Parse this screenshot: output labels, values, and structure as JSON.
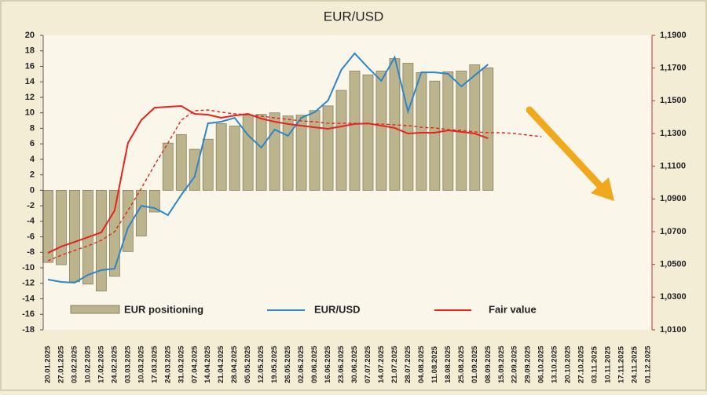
{
  "chart_data": {
    "type": "bar",
    "title": "EUR/USD",
    "categories": [
      "20.01.2025",
      "27.01.2025",
      "03.02.2025",
      "10.02.2025",
      "17.02.2025",
      "24.02.2025",
      "03.03.2025",
      "10.03.2025",
      "17.03.2025",
      "24.03.2025",
      "31.03.2025",
      "07.04.2025",
      "14.04.2025",
      "21.04.2025",
      "28.04.2025",
      "05.05.2025",
      "12.05.2025",
      "19.05.2025",
      "26.05.2025",
      "02.06.2025",
      "09.06.2025",
      "16.06.2025",
      "23.06.2025",
      "30.06.2025",
      "07.07.2025",
      "14.07.2025",
      "21.07.2025",
      "28.07.2025",
      "04.08.2025",
      "11.08.2025",
      "18.08.2025",
      "25.08.2025",
      "01.09.2025",
      "08.09.2025",
      "15.09.2025",
      "22.09.2025",
      "29.09.2025",
      "06.10.2025",
      "13.10.2025",
      "20.10.2025",
      "27.10.2025",
      "03.11.2025",
      "10.11.2025",
      "17.11.2025",
      "24.11.2025",
      "01.12.2025"
    ],
    "series": [
      {
        "name": "EUR positioning",
        "type": "bar",
        "color": "#bcb48c",
        "values": [
          -9.3,
          -9.6,
          -11.8,
          -12.1,
          -13.0,
          -11.1,
          -7.9,
          -5.9,
          -2.8,
          6.1,
          7.2,
          5.3,
          6.6,
          8.6,
          8.3,
          9.7,
          9.8,
          10.0,
          9.6,
          9.7,
          10.3,
          10.9,
          12.9,
          15.4,
          14.9,
          15.4,
          17.0,
          16.4,
          15.2,
          14.1,
          15.3,
          15.4,
          16.2,
          15.8,
          null,
          null,
          null,
          null,
          null,
          null,
          null,
          null,
          null,
          null,
          null,
          null
        ]
      },
      {
        "name": "EUR/USD",
        "type": "line",
        "axis": "y2",
        "color": "#2e86c8",
        "values": [
          1.0407,
          1.0393,
          1.0388,
          1.0436,
          1.0465,
          1.0474,
          1.0724,
          1.0858,
          1.0844,
          1.0801,
          1.0925,
          1.1036,
          1.1362,
          1.1372,
          1.1396,
          1.129,
          1.1214,
          1.1324,
          1.1286,
          1.1396,
          1.143,
          1.1502,
          1.1689,
          1.179,
          1.1703,
          1.1622,
          1.1766,
          1.1434,
          1.1674,
          1.1674,
          1.1665,
          1.1588,
          1.1655,
          1.1722,
          null,
          null,
          null,
          null,
          null,
          null,
          null,
          null,
          null,
          null,
          null,
          null
        ]
      },
      {
        "name": "Fair value",
        "type": "line",
        "axis": "y2",
        "color": "#e8231e",
        "values": [
          1.057,
          1.0609,
          1.0637,
          1.0666,
          1.0695,
          1.0829,
          1.1242,
          1.1382,
          1.1458,
          1.1463,
          1.1468,
          1.142,
          1.1415,
          1.1396,
          1.141,
          1.142,
          1.1391,
          1.1372,
          1.1358,
          1.1348,
          1.1338,
          1.1329,
          1.1343,
          1.1358,
          1.1362,
          1.1348,
          1.1334,
          1.13,
          1.1305,
          1.1305,
          1.1319,
          1.131,
          1.13,
          1.1271,
          null,
          null,
          null,
          null,
          null,
          null,
          null,
          null,
          null,
          null,
          null,
          null
        ]
      },
      {
        "type": "line",
        "axis": "y2",
        "dashed": true,
        "color": "#e8231e",
        "values": [
          1.0522,
          1.0556,
          1.0585,
          1.0613,
          1.0647,
          1.07,
          1.0829,
          1.0964,
          1.1108,
          1.1242,
          1.1382,
          1.1439,
          1.1444,
          1.143,
          1.142,
          1.1415,
          1.1406,
          1.1396,
          1.1386,
          1.1377,
          1.1372,
          1.1362,
          1.1362,
          1.1362,
          1.1358,
          1.1358,
          1.1353,
          1.1348,
          1.1338,
          1.1334,
          1.1324,
          1.1319,
          1.131,
          1.1305,
          1.1305,
          1.13,
          1.129,
          1.1281,
          null,
          null,
          null,
          null,
          null,
          null,
          null,
          null
        ]
      }
    ],
    "ylim": [
      -18,
      20
    ],
    "yticks": [
      20,
      18,
      16,
      14,
      12,
      10,
      8,
      6,
      4,
      2,
      0,
      -2,
      -4,
      -6,
      -8,
      -10,
      -12,
      -14,
      -16,
      -18
    ],
    "y2lim": [
      1.01,
      1.19
    ],
    "y2ticks": [
      {
        "value": 1.19,
        "label": "1,1900"
      },
      {
        "value": 1.17,
        "label": "1,1700"
      },
      {
        "value": 1.15,
        "label": "1,1500"
      },
      {
        "value": 1.13,
        "label": "1,1300"
      },
      {
        "value": 1.11,
        "label": "1,1100"
      },
      {
        "value": 1.09,
        "label": "1,0900"
      },
      {
        "value": 1.07,
        "label": "1,0700"
      },
      {
        "value": 1.05,
        "label": "1,0500"
      },
      {
        "value": 1.03,
        "label": "1,0300"
      },
      {
        "value": 1.01,
        "label": "1,0100"
      }
    ]
  }
}
